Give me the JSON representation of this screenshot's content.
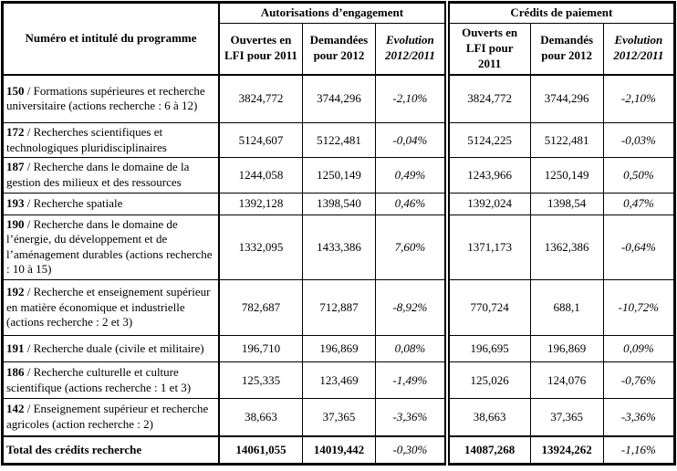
{
  "table": {
    "program_header": "Numéro et intitulé du programme",
    "groups": [
      {
        "label": "Autorisations d’engagement",
        "cols": [
          "Ouvertes en LFI pour 2011",
          "Demandées pour 2012",
          "Evolution 2012/2011"
        ]
      },
      {
        "label": "Crédits de paiement",
        "cols": [
          "Ouverts en LFI pour 2011",
          "Demandés pour 2012",
          "Evolution 2012/2011"
        ]
      }
    ],
    "rows": [
      {
        "num": "150",
        "name": "/ Formations supérieures et recherche universitaire (actions recherche : 6 à 12)",
        "ae": [
          "3824,772",
          "3744,296",
          "-2,10%"
        ],
        "cp": [
          "3824,772",
          "3744,296",
          "-2,10%"
        ]
      },
      {
        "num": "172",
        "name": "/ Recherches scientifiques et technologiques pluridisciplinaires",
        "ae": [
          "5124,607",
          "5122,481",
          "-0,04%"
        ],
        "cp": [
          "5124,225",
          "5122,481",
          "-0,03%"
        ]
      },
      {
        "num": "187",
        "name": "/ Recherche dans le domaine de la gestion des milieux et des ressources",
        "ae": [
          "1244,058",
          "1250,149",
          "0,49%"
        ],
        "cp": [
          "1243,966",
          "1250,149",
          "0,50%"
        ]
      },
      {
        "num": "193",
        "name": "/ Recherche spatiale",
        "ae": [
          "1392,128",
          "1398,540",
          "0,46%"
        ],
        "cp": [
          "1392,024",
          "1398,54",
          "0,47%"
        ]
      },
      {
        "num": "190",
        "name": "/ Recherche dans le domaine de l’énergie, du développement et de l’aménagement durables (actions recherche : 10 à 15)",
        "ae": [
          "1332,095",
          "1433,386",
          "7,60%"
        ],
        "cp": [
          "1371,173",
          "1362,386",
          "-0,64%"
        ]
      },
      {
        "num": "192",
        "name": "/ Recherche et enseignement supérieur en matière économique et industrielle (actions recherche : 2 et 3)",
        "ae": [
          "782,687",
          "712,887",
          "-8,92%"
        ],
        "cp": [
          "770,724",
          "688,1",
          "-10,72%"
        ]
      },
      {
        "num": "191",
        "name": "/ Recherche duale (civile et militaire)",
        "ae": [
          "196,710",
          "196,869",
          "0,08%"
        ],
        "cp": [
          "196,695",
          "196,869",
          "0,09%"
        ]
      },
      {
        "num": "186",
        "name": "/ Recherche culturelle et culture scientifique (actions recherche : 1 et 3)",
        "ae": [
          "125,335",
          "123,469",
          "-1,49%"
        ],
        "cp": [
          "125,026",
          "124,076",
          "-0,76%"
        ]
      },
      {
        "num": "142",
        "name": "/ Enseignement supérieur et recherche agricoles (action recherche : 2)",
        "ae": [
          "38,663",
          "37,365",
          "-3,36%"
        ],
        "cp": [
          "38,663",
          "37,365",
          "-3,36%"
        ]
      }
    ],
    "total": {
      "label": "Total des crédits recherche",
      "ae": [
        "14061,055",
        "14019,442",
        "-0,30%"
      ],
      "cp": [
        "14087,268",
        "13924,262",
        "-1,16%"
      ]
    }
  }
}
